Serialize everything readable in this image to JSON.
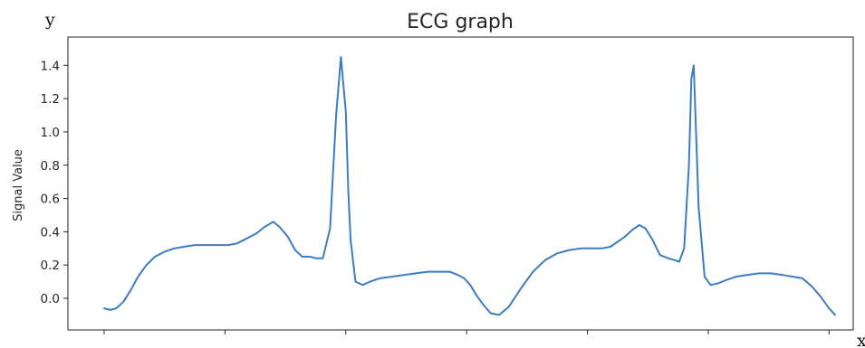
{
  "chart_data": {
    "type": "line",
    "title": "ECG graph",
    "xlabel": "",
    "ylabel": "Signal Value",
    "corner_labels": {
      "y": "y",
      "x": "x"
    },
    "ylim": [
      -0.19,
      1.57
    ],
    "xlim": [
      -0.3,
      6.2
    ],
    "yticks": [
      0.0,
      0.2,
      0.4,
      0.6,
      0.8,
      1.0,
      1.2,
      1.4
    ],
    "ytick_labels": [
      "0.0",
      "0.2",
      "0.4",
      "0.6",
      "0.8",
      "1.0",
      "1.2",
      "1.4"
    ],
    "xticks": [
      0,
      1,
      2,
      3,
      4,
      5,
      6
    ],
    "grid": false,
    "color": "#3b7dbf",
    "series": [
      {
        "x": [
          0.0,
          0.05,
          0.1,
          0.16,
          0.22,
          0.28,
          0.35,
          0.42,
          0.5,
          0.58,
          0.66,
          0.75,
          0.85,
          0.95,
          1.03,
          1.1,
          1.18,
          1.26,
          1.33,
          1.4,
          1.45,
          1.52,
          1.58,
          1.64,
          1.7,
          1.76,
          1.81,
          1.87,
          1.92,
          1.96,
          2.0,
          2.02,
          2.04,
          2.08,
          2.14,
          2.2,
          2.28,
          2.38,
          2.48,
          2.58,
          2.68,
          2.78,
          2.86,
          2.93,
          2.98,
          3.03,
          3.08,
          3.14,
          3.2,
          3.27,
          3.35,
          3.45,
          3.55,
          3.65,
          3.75,
          3.85,
          3.95,
          4.05,
          4.12,
          4.19,
          4.25,
          4.31,
          4.37,
          4.43,
          4.48,
          4.54,
          4.6,
          4.67,
          4.72,
          4.76,
          4.8,
          4.84,
          4.86,
          4.88,
          4.92,
          4.97,
          5.02,
          5.08,
          5.15,
          5.23,
          5.32,
          5.42,
          5.52,
          5.62,
          5.7,
          5.78,
          5.86,
          5.93,
          6.0,
          6.05
        ],
        "y": [
          -0.06,
          -0.07,
          -0.06,
          -0.02,
          0.05,
          0.13,
          0.2,
          0.25,
          0.28,
          0.3,
          0.31,
          0.32,
          0.32,
          0.32,
          0.32,
          0.33,
          0.36,
          0.39,
          0.43,
          0.46,
          0.43,
          0.37,
          0.29,
          0.25,
          0.25,
          0.24,
          0.24,
          0.42,
          1.1,
          1.45,
          1.12,
          0.65,
          0.35,
          0.1,
          0.08,
          0.1,
          0.12,
          0.13,
          0.14,
          0.15,
          0.16,
          0.16,
          0.16,
          0.14,
          0.12,
          0.08,
          0.02,
          -0.04,
          -0.09,
          -0.1,
          -0.05,
          0.06,
          0.16,
          0.23,
          0.27,
          0.29,
          0.3,
          0.3,
          0.3,
          0.31,
          0.34,
          0.37,
          0.41,
          0.44,
          0.42,
          0.35,
          0.26,
          0.24,
          0.23,
          0.22,
          0.3,
          0.8,
          1.32,
          1.4,
          0.55,
          0.13,
          0.08,
          0.09,
          0.11,
          0.13,
          0.14,
          0.15,
          0.15,
          0.14,
          0.13,
          0.12,
          0.07,
          0.01,
          -0.06,
          -0.1
        ]
      }
    ]
  }
}
